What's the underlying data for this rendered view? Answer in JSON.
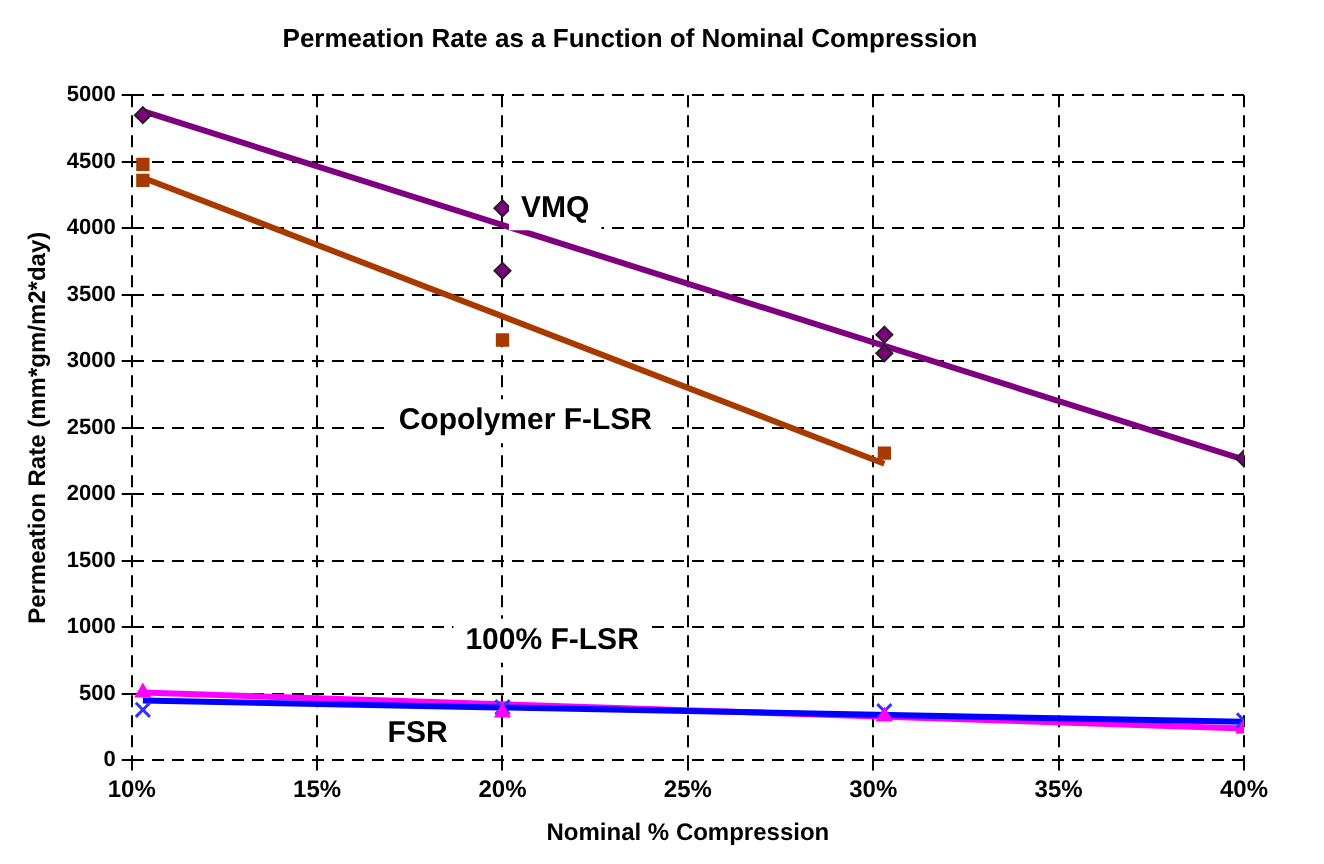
{
  "chart_data": {
    "type": "scatter",
    "title": "Permeation Rate as a Function of Nominal Compression",
    "xlabel": "Nominal % Compression",
    "ylabel": "Permeation Rate (mm*gm/m2*day)",
    "xlim": [
      10,
      40
    ],
    "xticks": [
      {
        "value": 10,
        "label": "10%"
      },
      {
        "value": 15,
        "label": "15%"
      },
      {
        "value": 20,
        "label": "20%"
      },
      {
        "value": 25,
        "label": "25%"
      },
      {
        "value": 30,
        "label": "30%"
      },
      {
        "value": 35,
        "label": "35%"
      },
      {
        "value": 40,
        "label": "40%"
      }
    ],
    "ylim": [
      0,
      5000
    ],
    "yticks": [
      0,
      500,
      1000,
      1500,
      2000,
      2500,
      3000,
      3500,
      4000,
      4500,
      5000
    ],
    "grid": true,
    "legend": false,
    "series": [
      {
        "name": "VMQ",
        "marker": "diamond",
        "color": "#7f007f",
        "x": [
          10.3,
          20,
          20,
          30.3,
          30.3,
          40
        ],
        "values": [
          4850,
          4150,
          3680,
          3200,
          3060,
          2270
        ]
      },
      {
        "name": "Copolymer F-LSR",
        "marker": "square",
        "color": "#a83a00",
        "x": [
          10.3,
          10.3,
          20,
          30.3
        ],
        "values": [
          4480,
          4360,
          3160,
          2310
        ]
      },
      {
        "name": "100% F-LSR",
        "marker": "triangle",
        "color": "#ff00ff",
        "x": [
          10.3,
          20,
          30.3,
          40
        ],
        "values": [
          510,
          360,
          330,
          240
        ]
      },
      {
        "name": "FSR",
        "marker": "cross",
        "color": "#3333ff",
        "x": [
          10.3,
          20,
          30.3,
          40
        ],
        "values": [
          380,
          400,
          370,
          300
        ]
      },
      {
        "type": "line",
        "color": "#7f007f",
        "x": [
          10.3,
          40
        ],
        "values": [
          4880,
          2260
        ]
      },
      {
        "type": "line",
        "color": "#a83a00",
        "x": [
          10.3,
          30.3
        ],
        "values": [
          4380,
          2230
        ]
      },
      {
        "type": "line",
        "color": "#0000ff",
        "x": [
          10.3,
          40
        ],
        "values": [
          450,
          290
        ]
      },
      {
        "type": "line",
        "color": "#ff00ff",
        "x": [
          10.3,
          40
        ],
        "values": [
          510,
          240
        ]
      }
    ]
  }
}
